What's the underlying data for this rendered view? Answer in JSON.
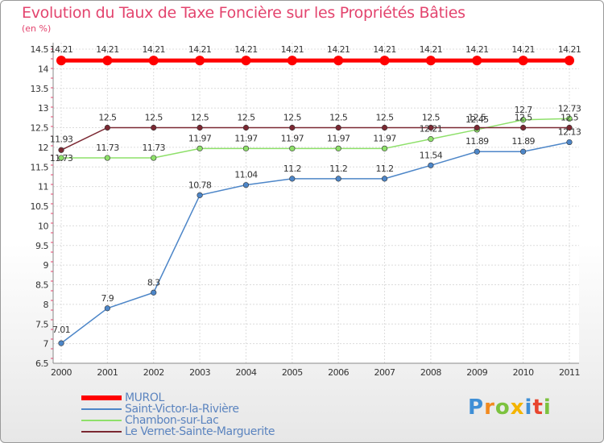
{
  "chart_data": {
    "type": "line",
    "title": "Evolution du Taux de Taxe Foncière sur les Propriétés Bâties",
    "ylabel": "(en %)",
    "xlabel": "",
    "ylim": [
      6.5,
      14.5
    ],
    "yticks": [
      "6.5",
      "7",
      "7.5",
      "8",
      "8.5",
      "9",
      "9.5",
      "10",
      "10.5",
      "11",
      "11.5",
      "12",
      "12.5",
      "13",
      "13.5",
      "14",
      "14.5"
    ],
    "categories": [
      "2000",
      "2001",
      "2002",
      "2003",
      "2004",
      "2005",
      "2006",
      "2007",
      "2008",
      "2009",
      "2010",
      "2011"
    ],
    "series": [
      {
        "name": "MUROL",
        "color": "#ff0000",
        "values": [
          14.21,
          14.21,
          14.21,
          14.21,
          14.21,
          14.21,
          14.21,
          14.21,
          14.21,
          14.21,
          14.21,
          14.21
        ],
        "labels": [
          "14.21",
          "14.21",
          "14.21",
          "14.21",
          "14.21",
          "14.21",
          "14.21",
          "14.21",
          "14.21",
          "14.21",
          "14.21",
          "14.21"
        ]
      },
      {
        "name": "Saint-Victor-la-Rivière",
        "color": "#4d86c8",
        "values": [
          7.01,
          7.9,
          8.3,
          10.78,
          11.04,
          11.2,
          11.2,
          11.2,
          11.54,
          11.89,
          11.89,
          12.13
        ],
        "labels": [
          "7.01",
          "7.9",
          "8.3",
          "10.78",
          "11.04",
          "11.2",
          "11.2",
          "11.2",
          "11.54",
          "11.89",
          "11.89",
          "12.13"
        ]
      },
      {
        "name": "Chambon-sur-Lac",
        "color": "#8ee06a",
        "values": [
          11.73,
          11.73,
          11.73,
          11.97,
          11.97,
          11.97,
          11.97,
          11.97,
          12.21,
          12.45,
          12.7,
          12.73
        ],
        "labels": [
          "11.73",
          "11.73",
          "11.73",
          "11.97",
          "11.97",
          "11.97",
          "11.97",
          "11.97",
          "12.21",
          "12.45",
          "12.7",
          "12.73"
        ]
      },
      {
        "name": "Le Vernet-Sainte-Marguerite",
        "color": "#7b2832",
        "values": [
          11.93,
          12.5,
          12.5,
          12.5,
          12.5,
          12.5,
          12.5,
          12.5,
          12.5,
          12.5,
          12.5,
          12.5
        ],
        "labels": [
          "11.93",
          "12.5",
          "12.5",
          "12.5",
          "12.5",
          "12.5",
          "12.5",
          "12.5",
          "12.5",
          "12.5",
          "12.5",
          "12.5"
        ]
      }
    ]
  },
  "brand": {
    "letters": [
      "P",
      "r",
      "o",
      "x",
      "i",
      "t",
      "i"
    ],
    "colors": [
      "#3f8fd6",
      "#f28a1f",
      "#7cc23e",
      "#f4b400",
      "#3f8fd6",
      "#e8452e",
      "#7cc23e"
    ]
  }
}
